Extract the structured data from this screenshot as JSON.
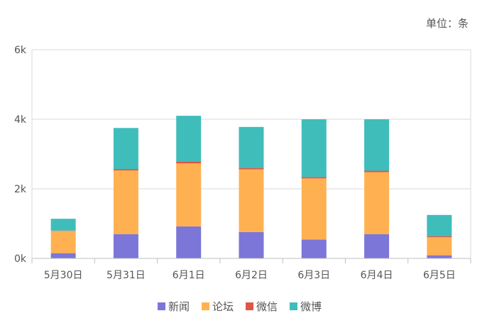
{
  "chart_data": {
    "type": "bar",
    "stacked": true,
    "unit_label": "单位：条",
    "categories": [
      "5月30日",
      "5月31日",
      "6月1日",
      "6月2日",
      "6月3日",
      "6月4日",
      "6月5日"
    ],
    "series": [
      {
        "name": "新闻",
        "color": "#7b76d8",
        "values": [
          150,
          700,
          920,
          760,
          540,
          700,
          90
        ]
      },
      {
        "name": "论坛",
        "color": "#ffb152",
        "values": [
          640,
          1830,
          1810,
          1800,
          1760,
          1780,
          520
        ]
      },
      {
        "name": "微信",
        "color": "#e05545",
        "values": [
          10,
          40,
          60,
          40,
          40,
          40,
          30
        ]
      },
      {
        "name": "微博",
        "color": "#3fbdbb",
        "values": [
          340,
          1180,
          1310,
          1180,
          1660,
          1480,
          610
        ]
      }
    ],
    "y_ticks": [
      "0k",
      "2k",
      "4k",
      "6k"
    ],
    "ylim": [
      0,
      6000
    ],
    "grid": true,
    "legend_position": "bottom"
  }
}
